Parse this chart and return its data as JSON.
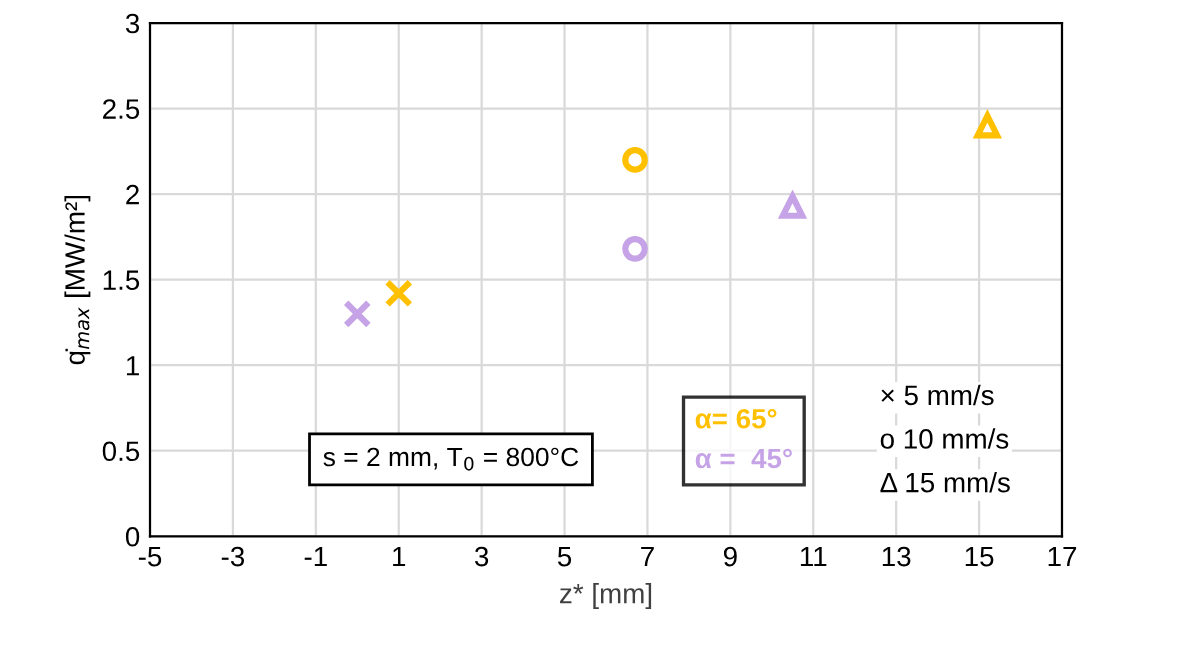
{
  "chart_data": {
    "type": "scatter",
    "xlabel": "z* [mm]",
    "ylabel": "q̇$_{max}$ [MW/m²]",
    "xlim": [
      -5,
      17
    ],
    "xticks": [
      -5,
      -3,
      -1,
      1,
      3,
      5,
      7,
      9,
      11,
      13,
      15,
      17
    ],
    "ylim": [
      0,
      3
    ],
    "yticks": [
      0,
      0.5,
      1,
      1.5,
      2,
      2.5,
      3
    ],
    "grid": true,
    "legend": "bottom right",
    "series": [
      {
        "name": "α= 65°",
        "color": "#ffc000",
        "marker": [
          "cross",
          "circle",
          "triangle"
        ],
        "x": [
          1,
          6.7,
          15.2
        ],
        "values": [
          1.42,
          2.2,
          2.4
        ]
      },
      {
        "name": "α =  45°",
        "color": "#c5a3e6",
        "marker": [
          "cross",
          "circle",
          "triangle"
        ],
        "x": [
          0,
          6.7,
          10.5
        ],
        "values": [
          1.3,
          1.68,
          1.93
        ]
      }
    ],
    "annotations": [
      "s = 2 mm, T$_{0}$ = 800°C",
      "× 5 mm/s",
      "o 10 mm/s",
      "Δ 15 mm/s"
    ]
  }
}
